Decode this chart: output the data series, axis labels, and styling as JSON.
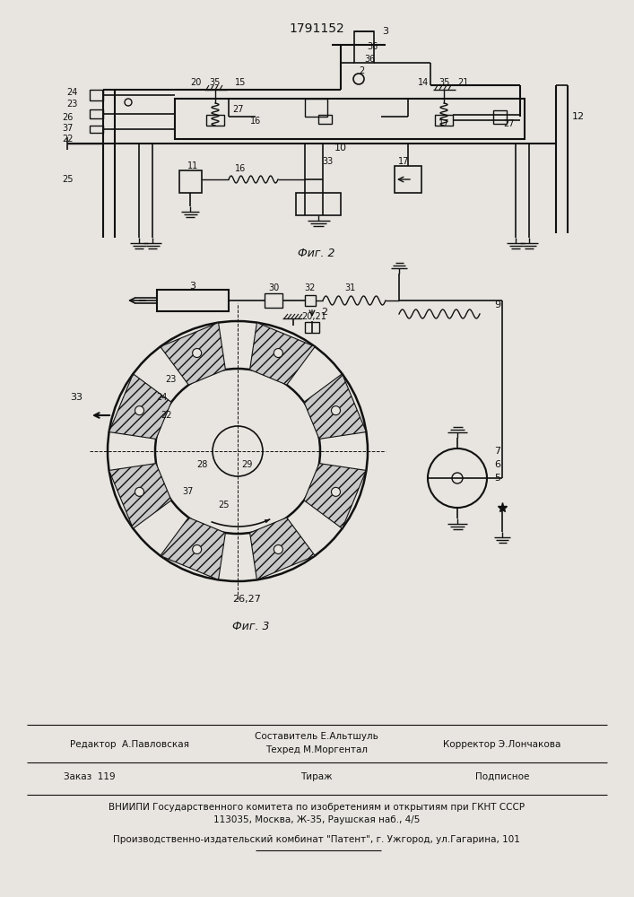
{
  "title": "1791152",
  "fig2_label": "Фиг. 2",
  "fig3_label": "Фиг. 3",
  "footer_line1_left": "Редактор  А.Павловская",
  "footer_line1_center_a": "Составитель Е.Альтшуль",
  "footer_line1_center_b": "Техред М.Моргентал",
  "footer_line1_right": "Корректор Э.Лончакова",
  "footer_line2_left": "Заказ  119",
  "footer_line2_center": "Тираж",
  "footer_line2_right": "Подписное",
  "footer_line3": "ВНИИПИ Государственного комитета по изобретениям и открытиям при ГКНТ СССР",
  "footer_line4": "113035, Москва, Ж-35, Раушская наб., 4/5",
  "footer_line5": "Производственно-издательский комбинат \"Патент\", г. Ужгород, ул.Гагарина, 101",
  "bg_color": "#e8e5e0",
  "line_color": "#111111",
  "text_color": "#111111"
}
